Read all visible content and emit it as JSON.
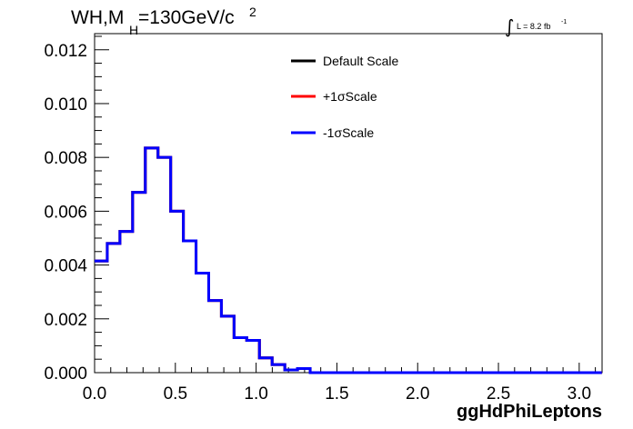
{
  "chart_data": {
    "type": "histogram",
    "title": {
      "prefix": "WH,M",
      "subscript": "H",
      "suffix": "=130GeV/c",
      "superscript": "2"
    },
    "luminosity": {
      "integral_sign": "∫",
      "text": "L = 8.2 fb",
      "superscript": "-1"
    },
    "xlabel": "ggHdPhiLeptons",
    "ylabel": "",
    "xlim": [
      0,
      3.1416
    ],
    "ylim": [
      0,
      0.0126
    ],
    "x_ticks": [
      0.0,
      0.5,
      1.0,
      1.5,
      2.0,
      2.5,
      3.0
    ],
    "x_tick_labels": [
      "0.0",
      "0.5",
      "1.0",
      "1.5",
      "2.0",
      "2.5",
      "3.0"
    ],
    "y_ticks": [
      0.0,
      0.002,
      0.004,
      0.006,
      0.008,
      0.01,
      0.012
    ],
    "y_tick_labels": [
      "0.000",
      "0.002",
      "0.004",
      "0.006",
      "0.008",
      "0.010",
      "0.012"
    ],
    "bin_width": 0.0785,
    "bin_values": [
      0.00415,
      0.0048,
      0.00525,
      0.0067,
      0.00835,
      0.008,
      0.006,
      0.0049,
      0.0037,
      0.00268,
      0.0021,
      0.0013,
      0.0012,
      0.00055,
      0.0003,
      0.0001,
      0.00015,
      0.0,
      0.0,
      0.0,
      0.0,
      0.0,
      0.0,
      0.0,
      0.0,
      0.0,
      0.0,
      0.0,
      0.0,
      0.0,
      0.0,
      0.0,
      0.0,
      0.0,
      0.0,
      0.0,
      0.0,
      0.0,
      0.0,
      0.0
    ],
    "legend": [
      {
        "name": "Default Scale",
        "color": "#000000"
      },
      {
        "name": "+1σScale",
        "color": "#ff0000"
      },
      {
        "name": "-1σScale",
        "color": "#0000ff"
      }
    ],
    "series": [
      {
        "name": "Default Scale",
        "color": "#000000"
      },
      {
        "name": "+1σScale",
        "color": "#ff0000"
      },
      {
        "name": "-1σScale",
        "color": "#0000ff"
      }
    ],
    "legend_position": "top-right",
    "grid": false
  }
}
